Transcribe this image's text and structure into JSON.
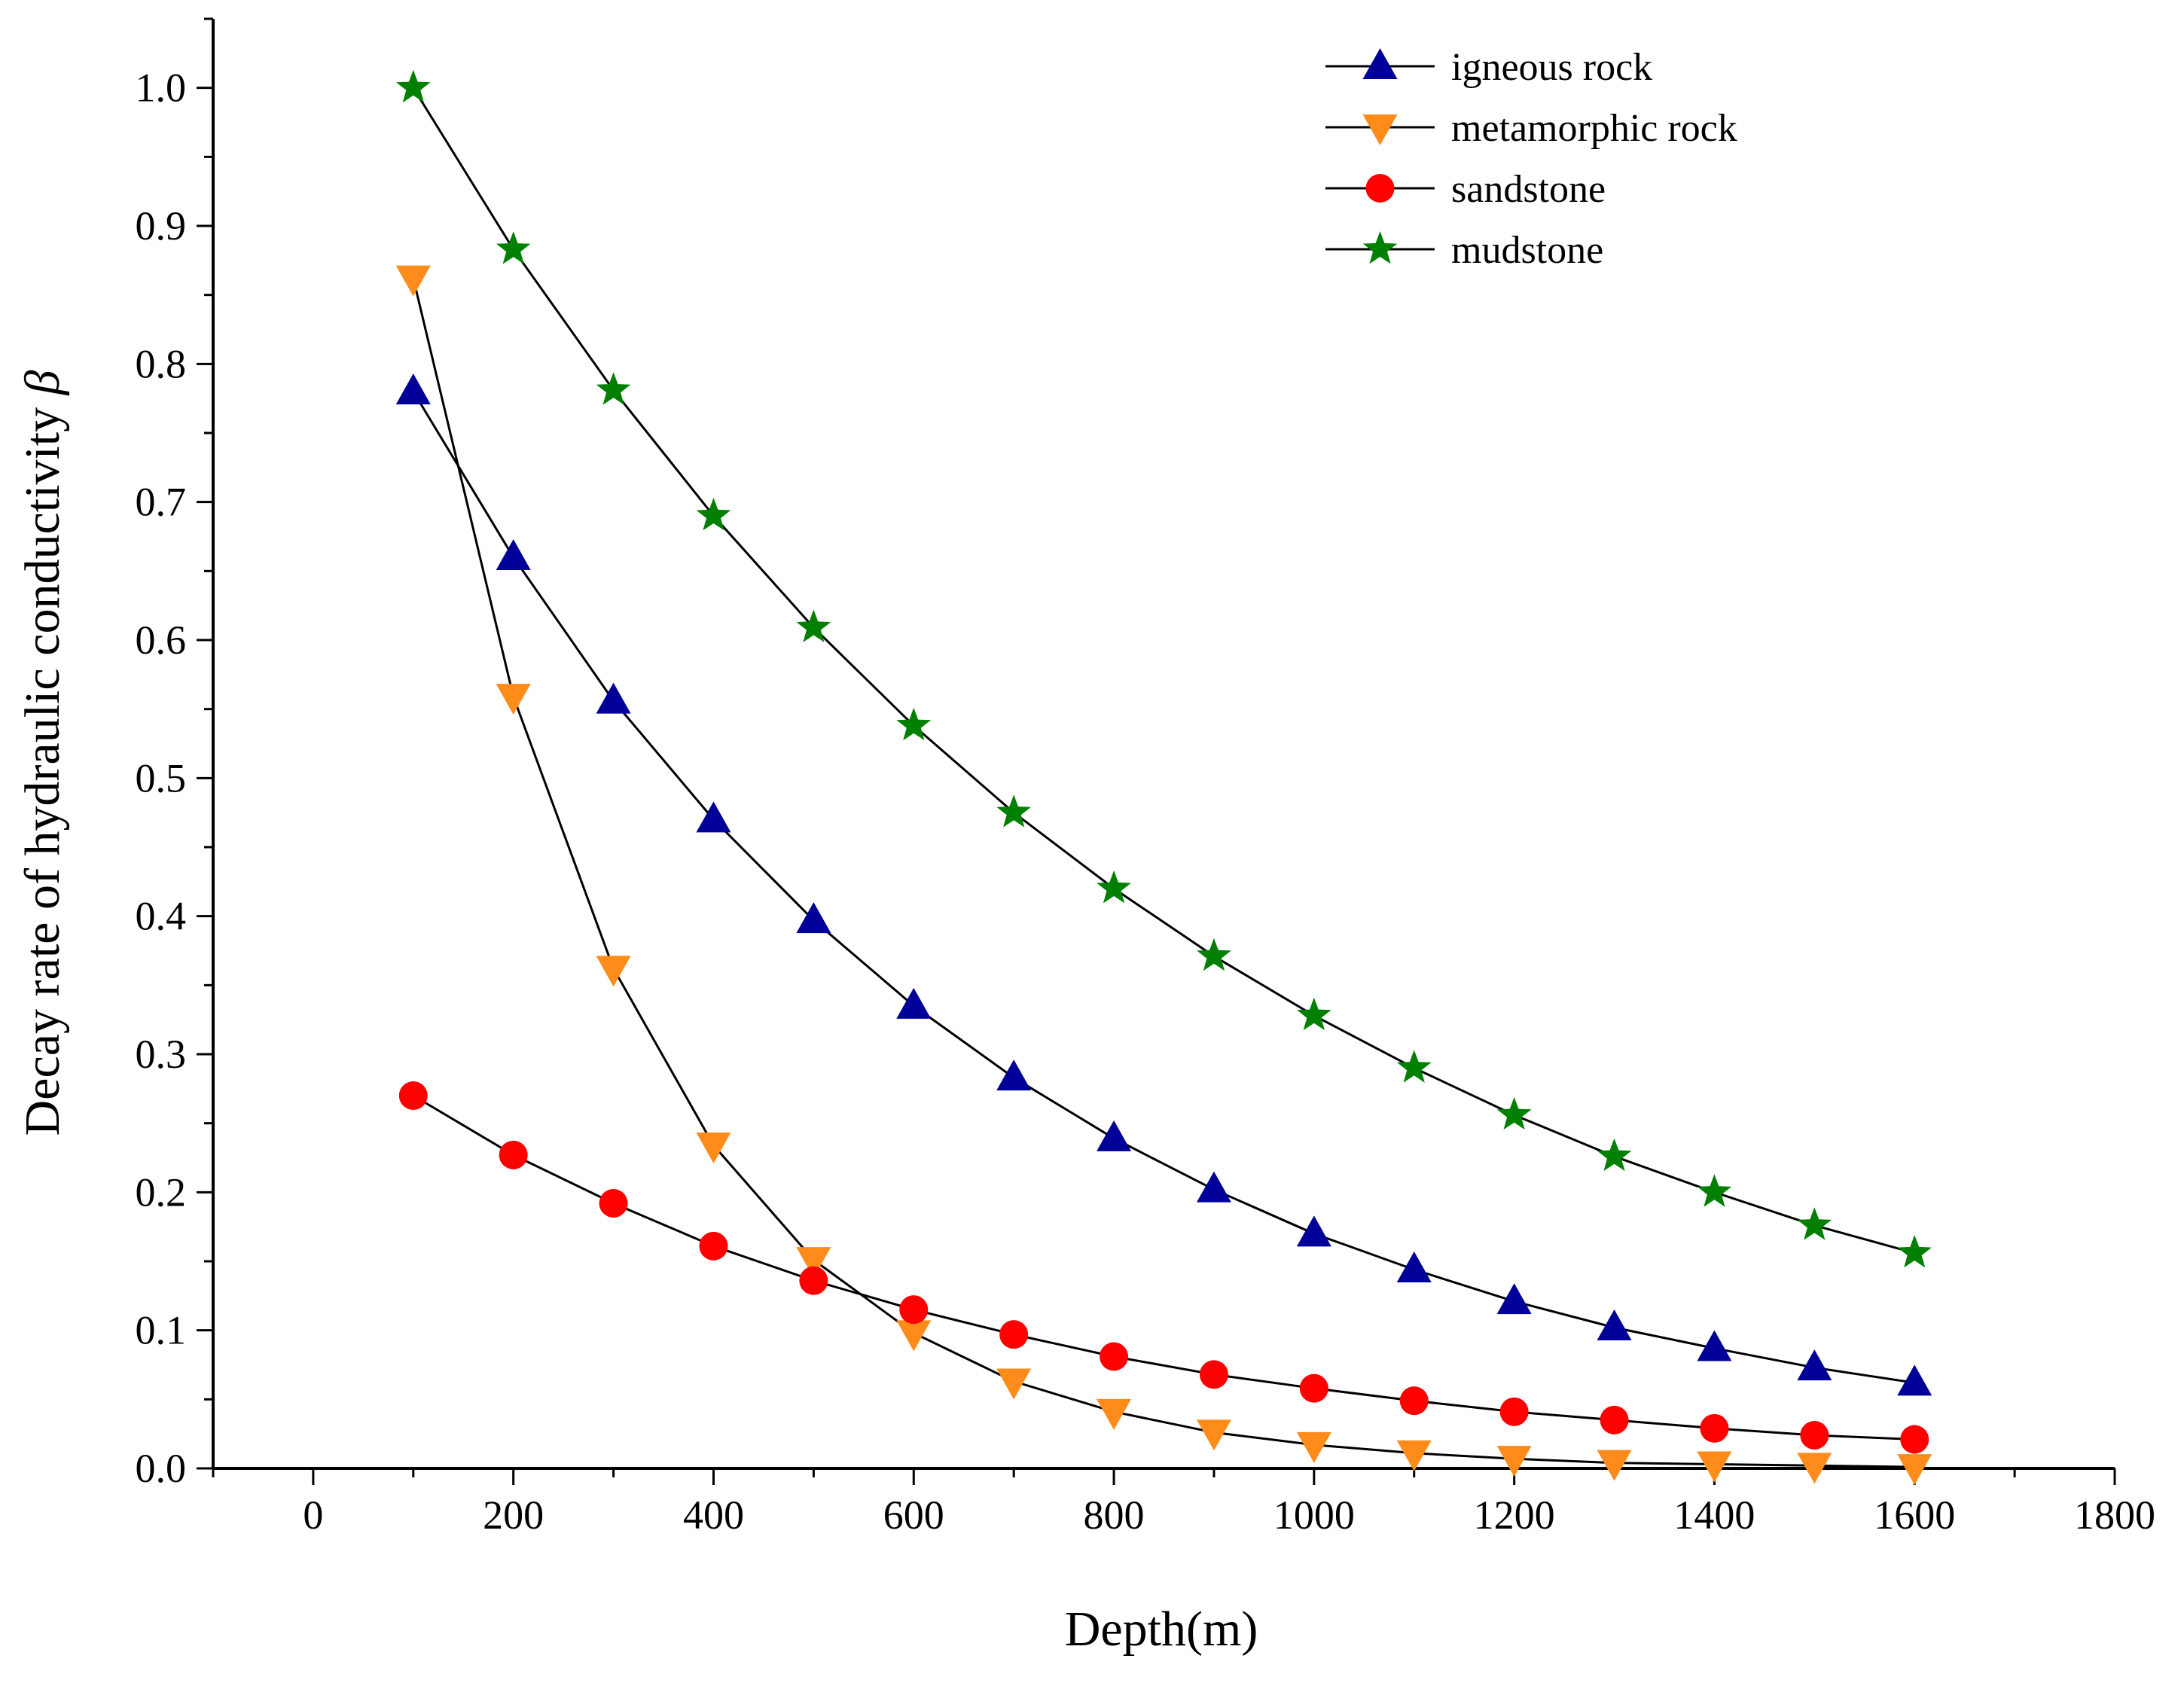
{
  "chart_data": {
    "type": "line",
    "title": "",
    "xlabel": "Depth(m)",
    "ylabel_prefix": "Decay rate of hydraulic conductivity ",
    "ylabel_symbol": "β",
    "xlim": [
      -100,
      1800
    ],
    "ylim": [
      0,
      1.05
    ],
    "xticks": [
      0,
      200,
      400,
      600,
      800,
      1000,
      1200,
      1400,
      1600,
      1800
    ],
    "xtick_labels": [
      "0",
      "200",
      "400",
      "600",
      "800",
      "1000",
      "1200",
      "1400",
      "1600",
      "1800"
    ],
    "yticks": [
      0,
      0.1,
      0.2,
      0.3,
      0.4,
      0.5,
      0.6,
      0.7,
      0.8,
      0.9,
      1.0
    ],
    "ytick_labels": [
      "0.0",
      "0.1",
      "0.2",
      "0.3",
      "0.4",
      "0.5",
      "0.6",
      "0.7",
      "0.8",
      "0.9",
      "1.0"
    ],
    "grid": false,
    "legend_position": "top-right",
    "x": [
      100,
      200,
      300,
      400,
      500,
      600,
      700,
      800,
      900,
      1000,
      1100,
      1200,
      1300,
      1400,
      1500,
      1600
    ],
    "series": [
      {
        "name": "igneous rock",
        "marker": "triangle-up",
        "color": "#000099",
        "values": [
          0.78,
          0.66,
          0.556,
          0.47,
          0.397,
          0.335,
          0.283,
          0.239,
          0.202,
          0.17,
          0.144,
          0.121,
          0.102,
          0.087,
          0.073,
          0.062
        ]
      },
      {
        "name": "metamorphic rock",
        "marker": "triangle-down",
        "color": "#FF8C1A",
        "values": [
          0.862,
          0.559,
          0.362,
          0.234,
          0.151,
          0.098,
          0.063,
          0.041,
          0.026,
          0.017,
          0.011,
          0.007,
          0.004,
          0.003,
          0.002,
          0.001
        ]
      },
      {
        "name": "sandstone",
        "marker": "circle",
        "color": "#FF0000",
        "values": [
          0.27,
          0.227,
          0.192,
          0.161,
          0.136,
          0.115,
          0.097,
          0.081,
          0.068,
          0.058,
          0.049,
          0.041,
          0.035,
          0.029,
          0.024,
          0.021
        ]
      },
      {
        "name": "mudstone",
        "marker": "star",
        "color": "#008000",
        "values": [
          1.0,
          0.883,
          0.781,
          0.69,
          0.609,
          0.538,
          0.475,
          0.42,
          0.371,
          0.328,
          0.29,
          0.256,
          0.226,
          0.2,
          0.176,
          0.156
        ]
      }
    ]
  }
}
